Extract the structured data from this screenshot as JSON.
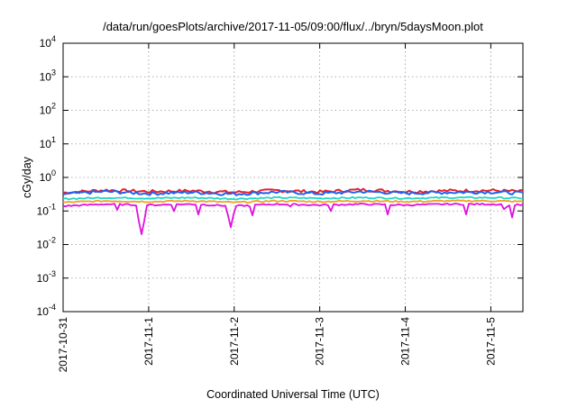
{
  "chart_data": {
    "type": "line",
    "title": "/data/run/goesPlots/archive/2017-11-05/09:00/flux/../bryn/5daysMoon.plot",
    "xlabel": "Coordinated Universal Time (UTC)",
    "ylabel": "cGy/day",
    "y_scale": "log",
    "ylim": [
      0.0001,
      10000
    ],
    "y_ticks": [
      {
        "base": "10",
        "exp": "-4",
        "value": 0.0001
      },
      {
        "base": "10",
        "exp": "-3",
        "value": 0.001
      },
      {
        "base": "10",
        "exp": "-2",
        "value": 0.01
      },
      {
        "base": "10",
        "exp": "-1",
        "value": 0.1
      },
      {
        "base": "10",
        "exp": "0",
        "value": 1
      },
      {
        "base": "10",
        "exp": "1",
        "value": 10
      },
      {
        "base": "10",
        "exp": "2",
        "value": 100
      },
      {
        "base": "10",
        "exp": "3",
        "value": 1000
      },
      {
        "base": "10",
        "exp": "4",
        "value": 10000
      }
    ],
    "xlim": [
      "2017-10-31 00:00",
      "2017-11-05 09:00"
    ],
    "x_ticks": [
      "2017-10-31",
      "2017-11-1",
      "2017-11-2",
      "2017-11-3",
      "2017-11-4",
      "2017-11-5"
    ],
    "grid": true,
    "legend": "none",
    "colors": [
      "#e8202a",
      "#2060f0",
      "#20d8c8",
      "#f0a020",
      "#e010e0"
    ],
    "series": [
      {
        "color": "#e8202a",
        "baseline": 0.38,
        "x": [
          "2017-10-31 00:00",
          "2017-10-31 12:00",
          "2017-11-01 00:00",
          "2017-11-01 12:00",
          "2017-11-02 00:00",
          "2017-11-02 12:00",
          "2017-11-03 00:00",
          "2017-11-03 12:00",
          "2017-11-04 00:00",
          "2017-11-04 12:00",
          "2017-11-05 00:00",
          "2017-11-05 09:00"
        ],
        "values": [
          0.35,
          0.42,
          0.38,
          0.4,
          0.36,
          0.41,
          0.37,
          0.43,
          0.38,
          0.4,
          0.41,
          0.38
        ]
      },
      {
        "color": "#2060f0",
        "baseline": 0.34,
        "x": [
          "2017-10-31 00:00",
          "2017-10-31 12:00",
          "2017-11-01 00:00",
          "2017-11-01 12:00",
          "2017-11-02 00:00",
          "2017-11-02 12:00",
          "2017-11-03 00:00",
          "2017-11-03 12:00",
          "2017-11-04 00:00",
          "2017-11-04 12:00",
          "2017-11-05 00:00",
          "2017-11-05 09:00"
        ],
        "values": [
          0.32,
          0.38,
          0.33,
          0.36,
          0.32,
          0.37,
          0.33,
          0.38,
          0.34,
          0.36,
          0.37,
          0.34
        ]
      },
      {
        "color": "#20d8c8",
        "baseline": 0.24,
        "x": [
          "2017-10-31 00:00",
          "2017-10-31 12:00",
          "2017-11-01 00:00",
          "2017-11-01 12:00",
          "2017-11-02 00:00",
          "2017-11-02 12:00",
          "2017-11-03 00:00",
          "2017-11-03 12:00",
          "2017-11-04 00:00",
          "2017-11-04 12:00",
          "2017-11-05 00:00",
          "2017-11-05 09:00"
        ],
        "values": [
          0.23,
          0.25,
          0.24,
          0.25,
          0.23,
          0.25,
          0.24,
          0.25,
          0.24,
          0.25,
          0.25,
          0.24
        ]
      },
      {
        "color": "#f0a020",
        "baseline": 0.19,
        "x": [
          "2017-10-31 00:00",
          "2017-10-31 12:00",
          "2017-11-01 00:00",
          "2017-11-01 12:00",
          "2017-11-02 00:00",
          "2017-11-02 12:00",
          "2017-11-03 00:00",
          "2017-11-03 12:00",
          "2017-11-04 00:00",
          "2017-11-04 12:00",
          "2017-11-05 00:00",
          "2017-11-05 09:00"
        ],
        "values": [
          0.18,
          0.2,
          0.19,
          0.2,
          0.18,
          0.2,
          0.19,
          0.2,
          0.19,
          0.2,
          0.2,
          0.19
        ]
      },
      {
        "color": "#e010e0",
        "baseline": 0.15,
        "x": [
          "2017-10-31 00:00",
          "2017-10-31 12:00",
          "2017-11-01 00:00",
          "2017-11-01 12:00",
          "2017-11-02 00:00",
          "2017-11-02 12:00",
          "2017-11-03 00:00",
          "2017-11-03 12:00",
          "2017-11-04 00:00",
          "2017-11-04 12:00",
          "2017-11-05 00:00",
          "2017-11-05 09:00"
        ],
        "values": [
          0.14,
          0.16,
          0.15,
          0.16,
          0.14,
          0.16,
          0.15,
          0.16,
          0.15,
          0.16,
          0.16,
          0.15
        ],
        "dips": [
          {
            "x": "2017-10-31 02:00",
            "value": 0.1
          },
          {
            "x": "2017-10-31 15:00",
            "value": 0.08
          },
          {
            "x": "2017-10-31 22:00",
            "value": 0.02
          },
          {
            "x": "2017-11-01 07:00",
            "value": 0.08
          },
          {
            "x": "2017-11-01 14:00",
            "value": 0.07
          },
          {
            "x": "2017-11-01 23:00",
            "value": 0.03
          },
          {
            "x": "2017-11-02 05:00",
            "value": 0.06
          },
          {
            "x": "2017-11-02 16:00",
            "value": 0.09
          },
          {
            "x": "2017-11-03 03:00",
            "value": 0.08
          },
          {
            "x": "2017-11-03 19:00",
            "value": 0.07
          },
          {
            "x": "2017-11-04 17:00",
            "value": 0.07
          },
          {
            "x": "2017-11-05 04:00",
            "value": 0.07
          },
          {
            "x": "2017-11-05 06:00",
            "value": 0.06
          }
        ]
      }
    ]
  }
}
